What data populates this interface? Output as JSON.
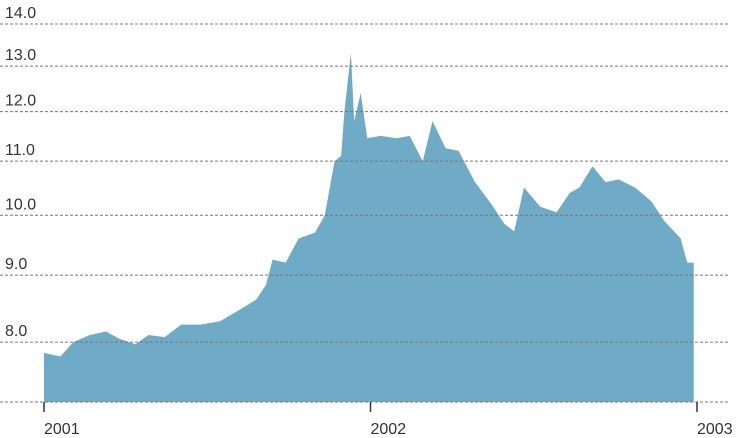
{
  "chart_data": {
    "type": "area",
    "color": "#6faac7",
    "log_scale": true,
    "grid": true,
    "x": [
      2001.0,
      2001.05,
      2001.09,
      2001.14,
      2001.19,
      2001.23,
      2001.28,
      2001.32,
      2001.37,
      2001.42,
      2001.48,
      2001.54,
      2001.6,
      2001.65,
      2001.68,
      2001.7,
      2001.74,
      2001.78,
      2001.83,
      2001.86,
      2001.89,
      2001.91,
      2001.92,
      2001.94,
      2001.95,
      2001.97,
      2001.99,
      2002.03,
      2002.08,
      2002.12,
      2002.16,
      2002.19,
      2002.23,
      2002.27,
      2002.32,
      2002.37,
      2002.41,
      2002.44,
      2002.47,
      2002.52,
      2002.57,
      2002.61,
      2002.64,
      2002.68,
      2002.72,
      2002.76,
      2002.81,
      2002.86,
      2002.9,
      2002.95,
      2002.97,
      2002.99
    ],
    "values": [
      7.85,
      7.8,
      8.0,
      8.1,
      8.15,
      8.05,
      7.97,
      8.1,
      8.07,
      8.25,
      8.25,
      8.3,
      8.47,
      8.62,
      8.85,
      9.25,
      9.2,
      9.6,
      9.7,
      10.0,
      11.0,
      11.1,
      12.0,
      13.3,
      11.8,
      12.4,
      11.45,
      11.5,
      11.45,
      11.5,
      11.0,
      11.8,
      11.25,
      11.2,
      10.6,
      10.2,
      9.85,
      9.72,
      10.5,
      10.15,
      10.05,
      10.4,
      10.5,
      10.9,
      10.6,
      10.65,
      10.5,
      10.25,
      9.9,
      9.6,
      9.2,
      9.2
    ],
    "xlim": [
      2001,
      2003
    ],
    "xticks": [
      2001,
      2002,
      2003
    ],
    "ylim": [
      7.2,
      14
    ],
    "yticks": [
      {
        "value": 8,
        "label": "8.0"
      },
      {
        "value": 9,
        "label": "9.0"
      },
      {
        "value": 10,
        "label": "10.0"
      },
      {
        "value": 11,
        "label": "11.0"
      },
      {
        "value": 12,
        "label": "12.0"
      },
      {
        "value": 13,
        "label": "13.0"
      },
      {
        "value": 14,
        "label": "14.0"
      }
    ]
  }
}
